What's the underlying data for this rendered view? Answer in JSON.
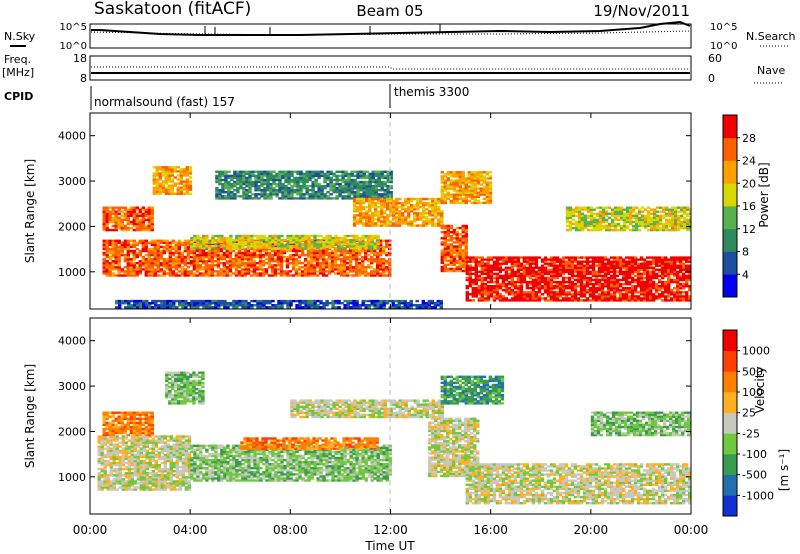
{
  "header": {
    "title": "Saskatoon (fitACF)",
    "beam": "Beam 05",
    "date": "19/Nov/2011"
  },
  "strip_nsky": {
    "label": "N.Sky",
    "left_ticks": [
      "10^5",
      "10^0"
    ],
    "right_ticks": [
      "10^5",
      "10^0"
    ],
    "right_label": "N.Search"
  },
  "strip_freq": {
    "label_line1": "Freq.",
    "label_line2": "[MHz]",
    "left_ticks": [
      "18",
      "8"
    ],
    "right_ticks": [
      "60",
      "0"
    ],
    "right_label": "Nave"
  },
  "cpid": {
    "label": "CPID",
    "segments": [
      {
        "name": "normalsound (fast) 157",
        "start_hour": 0,
        "end_hour": 12.0
      },
      {
        "name": "themis 3300",
        "start_hour": 12.0,
        "end_hour": 24
      }
    ]
  },
  "chart_data": [
    {
      "type": "heatmap",
      "name": "Power",
      "xlabel": "",
      "ylabel": "Slant Range [km]",
      "x_range_hours": [
        0,
        24
      ],
      "y_range_km": [
        180,
        4500
      ],
      "yticks": [
        "1000",
        "2000",
        "3000",
        "4000"
      ],
      "colorbar": {
        "label": "Power [dB]",
        "ticks": [
          "4",
          "8",
          "12",
          "16",
          "20",
          "24",
          "28"
        ],
        "colors": [
          "#0000f0",
          "#1e4ea0",
          "#2e8a5c",
          "#58b050",
          "#d8d800",
          "#ffa000",
          "#ff6000",
          "#f00000"
        ]
      },
      "echo_regions": [
        {
          "t0": 0.5,
          "t1": 12.0,
          "r0": 900,
          "r1": 1700,
          "level": 6
        },
        {
          "t0": 4.0,
          "t1": 11.5,
          "r0": 1500,
          "r1": 1800,
          "level": 4
        },
        {
          "t0": 0.5,
          "t1": 2.5,
          "r0": 1900,
          "r1": 2400,
          "level": 6
        },
        {
          "t0": 2.5,
          "t1": 4.0,
          "r0": 2700,
          "r1": 3300,
          "level": 5
        },
        {
          "t0": 5.0,
          "t1": 12.0,
          "r0": 2600,
          "r1": 3200,
          "level": 2
        },
        {
          "t0": 10.5,
          "t1": 14.0,
          "r0": 2000,
          "r1": 2600,
          "level": 5
        },
        {
          "t0": 14.0,
          "t1": 15.0,
          "r0": 1000,
          "r1": 2000,
          "level": 6
        },
        {
          "t0": 14.0,
          "t1": 16.0,
          "r0": 2500,
          "r1": 3200,
          "level": 5
        },
        {
          "t0": 15.0,
          "t1": 24.0,
          "r0": 350,
          "r1": 1300,
          "level": 7
        },
        {
          "t0": 19.0,
          "t1": 24.0,
          "r0": 1900,
          "r1": 2400,
          "level": 4
        },
        {
          "t0": 1.0,
          "t1": 14.0,
          "r0": 200,
          "r1": 350,
          "level": 1
        }
      ]
    },
    {
      "type": "heatmap",
      "name": "Velocity",
      "xlabel": "Time UT",
      "ylabel": "Slant Range [km]",
      "x_range_hours": [
        0,
        24
      ],
      "xticks": [
        "00:00",
        "04:00",
        "08:00",
        "12:00",
        "16:00",
        "20:00",
        "00:00"
      ],
      "y_range_km": [
        180,
        4500
      ],
      "yticks": [
        "1000",
        "2000",
        "3000",
        "4000"
      ],
      "colorbar": {
        "label": "Velocity",
        "unit": "[m s⁻¹]",
        "ticks": [
          "1000",
          "500",
          "100",
          "25",
          "-25",
          "-100",
          "-500",
          "-1000"
        ],
        "colors": [
          "#1030d0",
          "#2070b0",
          "#3a9a50",
          "#70c840",
          "#c8c8c0",
          "#ffb020",
          "#ff8000",
          "#ff4000",
          "#f00000"
        ]
      },
      "echo_regions": [
        {
          "t0": 0.3,
          "t1": 4.0,
          "r0": 700,
          "r1": 1900,
          "level": 4
        },
        {
          "t0": 4.0,
          "t1": 12.0,
          "r0": 900,
          "r1": 1700,
          "level": 3
        },
        {
          "t0": 6.0,
          "t1": 11.5,
          "r0": 1600,
          "r1": 1850,
          "level": 6
        },
        {
          "t0": 0.5,
          "t1": 2.5,
          "r0": 1900,
          "r1": 2400,
          "level": 6
        },
        {
          "t0": 3.0,
          "t1": 4.5,
          "r0": 2600,
          "r1": 3300,
          "level": 3
        },
        {
          "t0": 8.0,
          "t1": 14.0,
          "r0": 2300,
          "r1": 2700,
          "level": 4
        },
        {
          "t0": 13.5,
          "t1": 15.5,
          "r0": 1000,
          "r1": 2300,
          "level": 4
        },
        {
          "t0": 15.0,
          "t1": 24.0,
          "r0": 400,
          "r1": 1300,
          "level": 4
        },
        {
          "t0": 14.0,
          "t1": 16.5,
          "r0": 2600,
          "r1": 3200,
          "level": 2
        },
        {
          "t0": 20.0,
          "t1": 24.0,
          "r0": 1900,
          "r1": 2400,
          "level": 3
        }
      ]
    }
  ]
}
